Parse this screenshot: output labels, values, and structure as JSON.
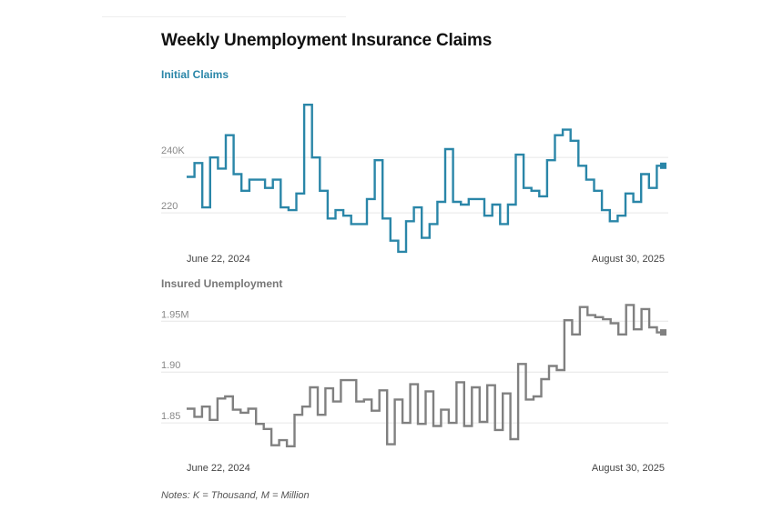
{
  "title": "Weekly Unemployment Insurance Claims",
  "notes": "Notes: K = Thousand, M = Million",
  "colors": {
    "initial": "#2a86a8",
    "insured": "#808080",
    "grid": "#e6e6e6"
  },
  "chart_data": [
    {
      "type": "line",
      "step": true,
      "title": "Initial Claims",
      "x_start_label": "June 22, 2024",
      "x_end_label": "August 30, 2025",
      "yticks": [
        {
          "value": 220,
          "label": "220"
        },
        {
          "value": 240,
          "label": "240K"
        }
      ],
      "ylim": [
        207.6,
        266.6
      ],
      "series": [
        {
          "values": [
            233,
            238,
            222,
            240,
            236,
            248,
            234,
            228,
            232,
            232,
            229,
            232,
            222,
            221,
            227,
            259,
            240,
            228,
            218,
            221,
            219,
            216,
            216,
            225,
            239,
            218,
            210,
            206,
            217,
            222,
            211,
            216,
            224,
            243,
            224,
            223,
            225,
            225,
            219,
            223,
            216,
            223,
            241,
            229,
            228,
            226,
            239,
            248,
            250,
            246,
            237,
            232,
            228,
            221,
            217,
            219,
            227,
            224,
            234,
            229,
            237
          ]
        }
      ]
    },
    {
      "type": "line",
      "step": true,
      "title": "Insured Unemployment",
      "x_start_label": "June 22, 2024",
      "x_end_label": "August 30, 2025",
      "yticks": [
        {
          "value": 1.85,
          "label": "1.85"
        },
        {
          "value": 1.9,
          "label": "1.90"
        },
        {
          "value": 1.95,
          "label": "1.95M"
        }
      ],
      "ylim": [
        1.817,
        1.978
      ],
      "series": [
        {
          "values": [
            1.864,
            1.856,
            1.866,
            1.853,
            1.874,
            1.876,
            1.863,
            1.86,
            1.864,
            1.849,
            1.844,
            1.828,
            1.833,
            1.827,
            1.858,
            1.866,
            1.885,
            1.858,
            1.884,
            1.871,
            1.892,
            1.892,
            1.871,
            1.873,
            1.862,
            1.882,
            1.829,
            1.873,
            1.85,
            1.888,
            1.849,
            1.881,
            1.847,
            1.863,
            1.85,
            1.89,
            1.847,
            1.885,
            1.851,
            1.887,
            1.843,
            1.879,
            1.834,
            1.908,
            1.873,
            1.876,
            1.893,
            1.906,
            1.902,
            1.951,
            1.937,
            1.964,
            1.956,
            1.954,
            1.952,
            1.948,
            1.937,
            1.966,
            1.942,
            1.962,
            1.944,
            1.939
          ]
        }
      ]
    }
  ]
}
